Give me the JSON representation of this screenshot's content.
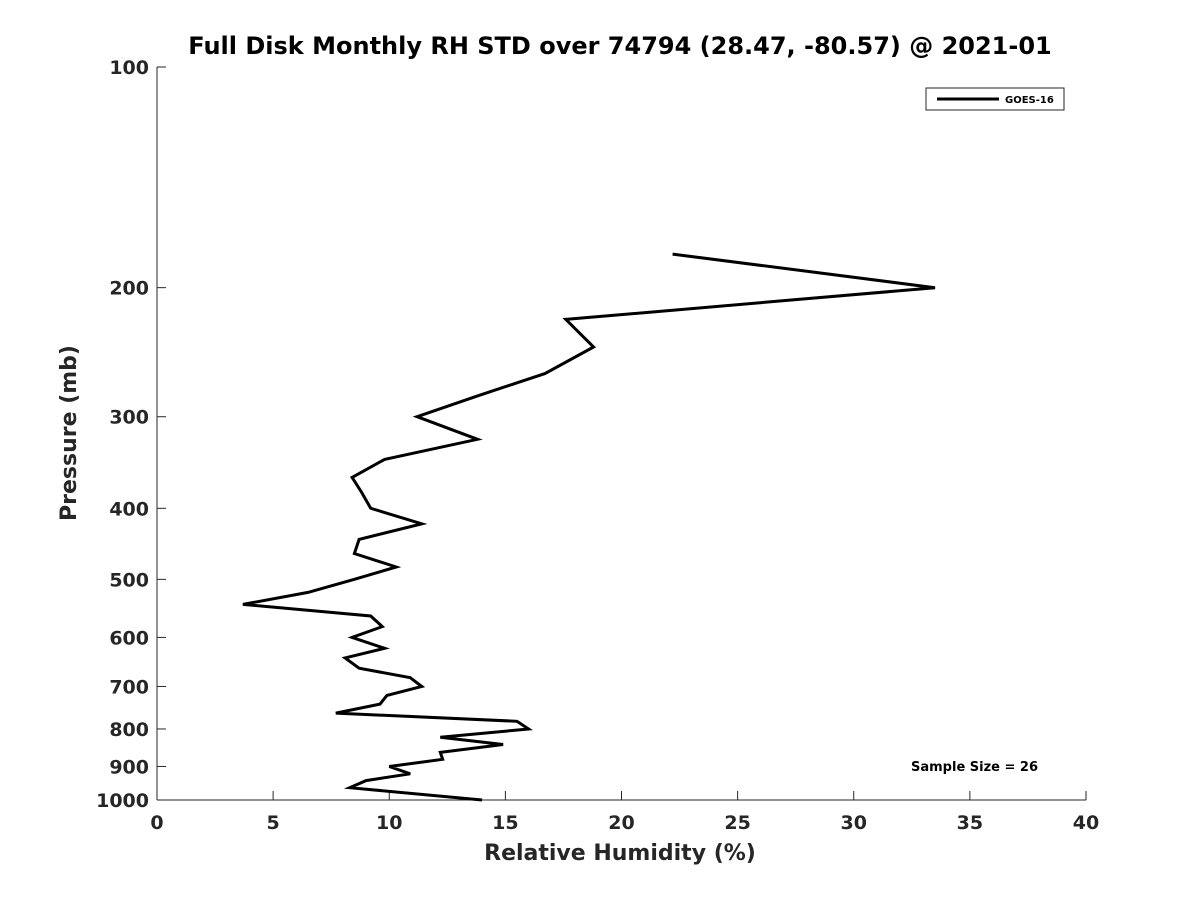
{
  "chart_data": {
    "type": "line",
    "title": "Full Disk Monthly RH STD over 74794 (28.47, -80.57) @ 2021-01",
    "xlabel": "Relative Humidity (%)",
    "ylabel": "Pressure (mb)",
    "xlim": [
      0,
      40
    ],
    "ylim": [
      100,
      1000
    ],
    "yscale": "log",
    "y_reversed": true,
    "grid": false,
    "x_ticks": [
      0,
      5,
      10,
      15,
      20,
      25,
      30,
      35,
      40
    ],
    "y_ticks": [
      100,
      200,
      300,
      400,
      500,
      600,
      700,
      800,
      900,
      1000
    ],
    "x_tick_labels": [
      "0",
      "5",
      "10",
      "15",
      "20",
      "25",
      "30",
      "35",
      "40"
    ],
    "y_tick_labels": [
      "100",
      "200",
      "300",
      "400",
      "500",
      "600",
      "700",
      "800",
      "900",
      "1000"
    ],
    "legend": {
      "position": "top-right",
      "entries": [
        "GOES-16"
      ]
    },
    "line_color": "#000000",
    "annotation": "Sample Size = 26",
    "series": [
      {
        "name": "GOES-16",
        "points": [
          [
            22.2,
            180
          ],
          [
            33.5,
            200
          ],
          [
            17.6,
            221
          ],
          [
            18.8,
            241
          ],
          [
            16.7,
            262
          ],
          [
            13.8,
            281
          ],
          [
            11.2,
            300
          ],
          [
            13.8,
            322
          ],
          [
            9.8,
            343
          ],
          [
            8.4,
            363
          ],
          [
            8.8,
            380
          ],
          [
            9.2,
            400
          ],
          [
            11.4,
            420
          ],
          [
            8.7,
            441
          ],
          [
            8.5,
            461
          ],
          [
            10.3,
            481
          ],
          [
            8.5,
            500
          ],
          [
            6.5,
            521
          ],
          [
            3.7,
            541
          ],
          [
            9.2,
            561
          ],
          [
            9.7,
            580
          ],
          [
            8.4,
            600
          ],
          [
            9.8,
            621
          ],
          [
            8.1,
            640
          ],
          [
            8.7,
            661
          ],
          [
            10.9,
            681
          ],
          [
            11.4,
            700
          ],
          [
            9.9,
            720
          ],
          [
            9.6,
            740
          ],
          [
            7.7,
            761
          ],
          [
            15.5,
            781
          ],
          [
            16.0,
            800
          ],
          [
            12.2,
            821
          ],
          [
            14.9,
            840
          ],
          [
            12.2,
            861
          ],
          [
            12.3,
            880
          ],
          [
            10.0,
            900
          ],
          [
            10.9,
            921
          ],
          [
            9.0,
            941
          ],
          [
            8.3,
            962
          ],
          [
            14.0,
            1000
          ]
        ]
      }
    ]
  }
}
